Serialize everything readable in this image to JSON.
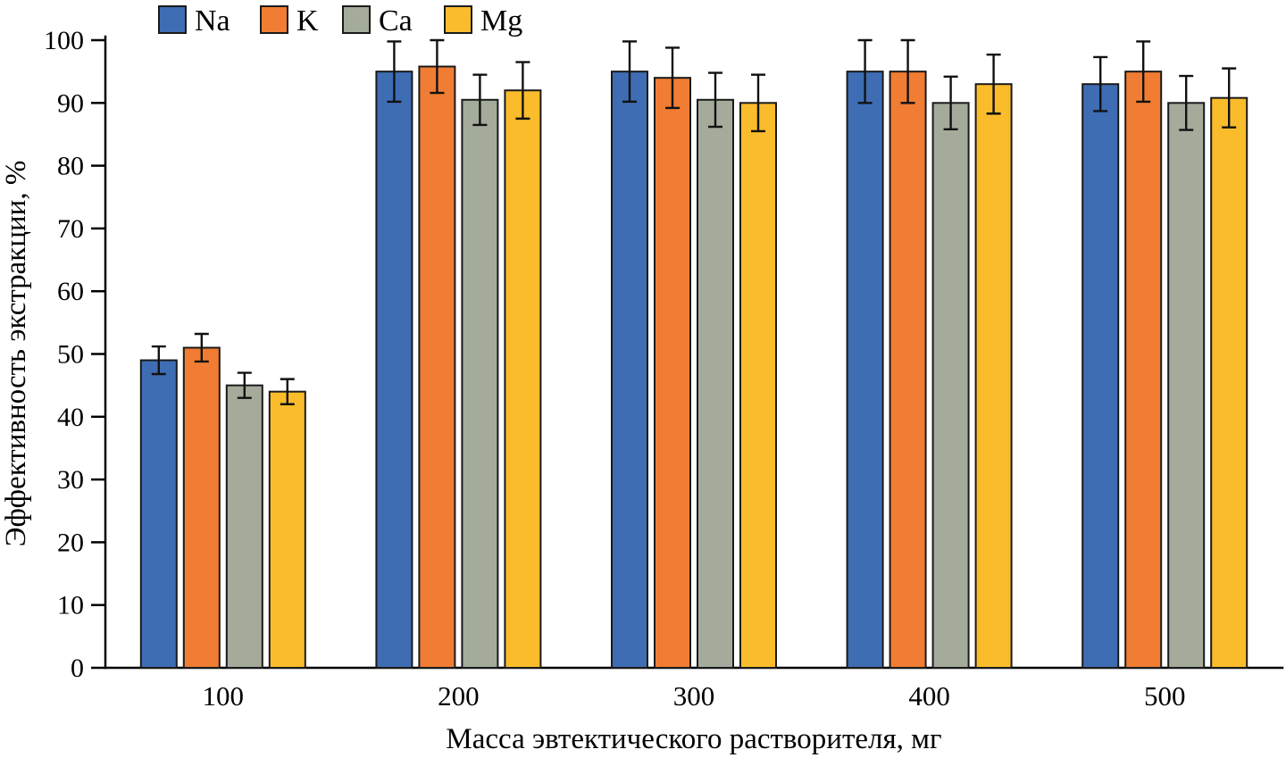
{
  "chart_data": {
    "type": "bar",
    "title": "",
    "xlabel": "Масса эвтектического растворителя, мг",
    "ylabel": "Эффективность экстракции, %",
    "categories": [
      "100",
      "200",
      "300",
      "400",
      "500"
    ],
    "yticks": [
      0,
      10,
      20,
      30,
      40,
      50,
      60,
      70,
      80,
      90,
      100
    ],
    "ylim": [
      0,
      100
    ],
    "grid": false,
    "legend_position": "top-left",
    "bar_outline": "#1a1a1a",
    "error_color": "#111111",
    "series": [
      {
        "name": "Na",
        "color": "#3F6DB4",
        "values": [
          49,
          95,
          95,
          95,
          93
        ],
        "errors": [
          2.2,
          4.8,
          4.8,
          5.0,
          4.3
        ]
      },
      {
        "name": "K",
        "color": "#F07D33",
        "values": [
          51,
          95.8,
          94,
          95,
          95
        ],
        "errors": [
          2.2,
          4.2,
          4.8,
          5.0,
          4.8
        ]
      },
      {
        "name": "Ca",
        "color": "#A4AB9B",
        "values": [
          45,
          90.5,
          90.5,
          90,
          90
        ],
        "errors": [
          2.0,
          4.0,
          4.3,
          4.2,
          4.3
        ]
      },
      {
        "name": "Mg",
        "color": "#FBBC2C",
        "values": [
          44,
          92,
          90,
          93,
          90.8
        ],
        "errors": [
          2.0,
          4.5,
          4.5,
          4.7,
          4.7
        ]
      }
    ]
  }
}
